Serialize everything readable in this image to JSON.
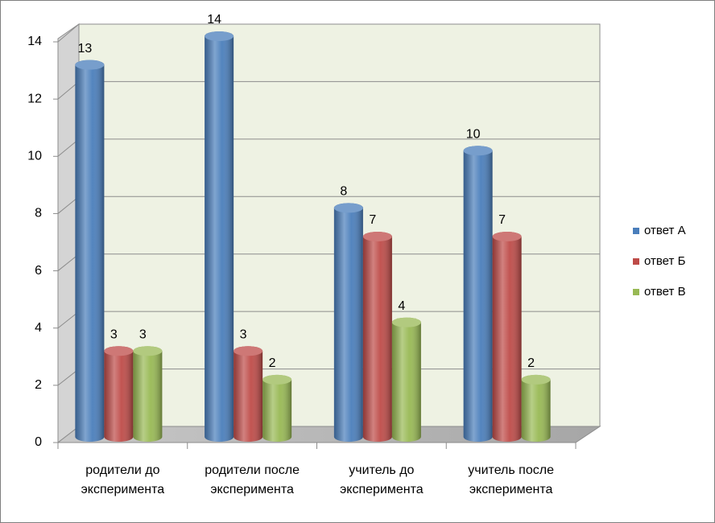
{
  "chart_data": {
    "type": "bar3d",
    "categories": [
      "родители до эксперимента",
      "родители после эксперимента",
      "учитель до эксперимента",
      "учитель после эксперимента"
    ],
    "series": [
      {
        "name": "ответ А",
        "color": "#4a7ebb",
        "values": [
          13,
          14,
          8,
          10
        ]
      },
      {
        "name": "ответ Б",
        "color": "#be4b48",
        "values": [
          3,
          3,
          7,
          7
        ]
      },
      {
        "name": "ответ В",
        "color": "#98b954",
        "values": [
          3,
          2,
          4,
          2
        ]
      }
    ],
    "ylim": [
      0,
      14
    ],
    "yticks": [
      0,
      2,
      4,
      6,
      8,
      10,
      12,
      14
    ],
    "grid": true,
    "data_labels": true,
    "legend": "right"
  }
}
